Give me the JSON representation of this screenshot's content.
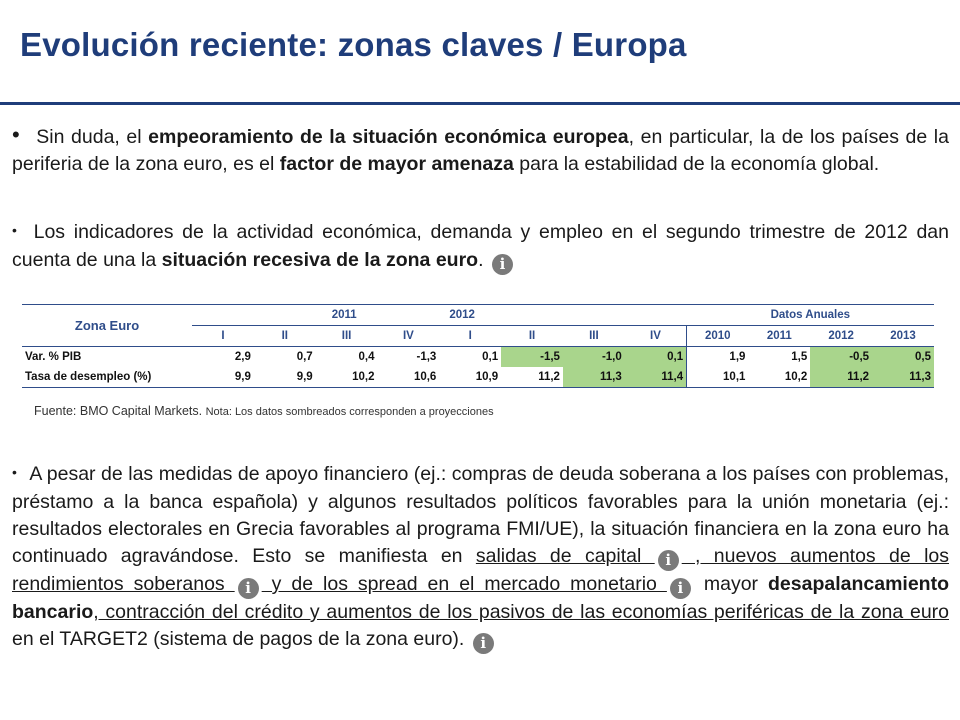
{
  "title": "Evolución reciente:  zonas claves / Europa",
  "para1": {
    "bullet": "•",
    "t1": " Sin duda, el ",
    "b1": "empeoramiento de la situación económica europea",
    "t2": ", en particular, la de los países de la periferia de la zona euro, es el ",
    "b2": "factor de mayor amenaza",
    "t3": " para la estabilidad de la economía global."
  },
  "para2": {
    "bullet": "•",
    "t1": " Los indicadores de la actividad económica, demanda y empleo en el segundo trimestre de 2012 dan cuenta de una la ",
    "b1": "situación recesiva de la zona euro",
    "t2": ". "
  },
  "info_icon_glyph": "i",
  "table": {
    "corner": "Zona Euro",
    "groups": [
      "2011",
      "2012",
      "Datos Anuales"
    ],
    "subheaders": [
      "I",
      "II",
      "III",
      "IV",
      "I",
      "II",
      "III",
      "IV",
      "2010",
      "2011",
      "2012",
      "2013"
    ],
    "rows": [
      {
        "label": "Var. % PIB",
        "values": [
          "2,9",
          "0,7",
          "0,4",
          "-1,3",
          "0,1",
          "-1,5",
          "-1,0",
          "0,1",
          "1,9",
          "1,5",
          "-0,5",
          "0,5"
        ],
        "shaded": [
          false,
          false,
          false,
          false,
          false,
          true,
          true,
          true,
          false,
          false,
          true,
          true
        ]
      },
      {
        "label": "Tasa de desempleo (%)",
        "values": [
          "9,9",
          "9,9",
          "10,2",
          "10,6",
          "10,9",
          "11,2",
          "11,3",
          "11,4",
          "10,1",
          "10,2",
          "11,2",
          "11,3"
        ],
        "shaded": [
          false,
          false,
          false,
          false,
          false,
          false,
          true,
          true,
          false,
          false,
          true,
          true
        ]
      }
    ],
    "shade_color": "#a9d58c"
  },
  "fuente": {
    "source": "Fuente: BMO Capital Markets. ",
    "nota": "Nota: Los datos sombreados corresponden a proyecciones"
  },
  "para3": {
    "bullet": "•",
    "t1": " A pesar de las medidas de apoyo financiero (ej.: compras de deuda soberana a los países con problemas, préstamo a la banca española) y algunos resultados políticos favorables para la unión monetaria  (ej.: resultados electorales en Grecia favorables al programa FMI/UE), la situación financiera en la zona euro ha continuado agravándose. Esto se manifiesta en ",
    "u1": "salidas de capital ",
    "u2": " , nuevos aumentos de los rendimientos soberanos ",
    "u3": "  y de los spread en el mercado monetario ",
    "t2": "   mayor ",
    "b1": "desapalancamiento bancario",
    "u4": ", contracción del crédito y aumentos de los pasivos de las economías periféricas de la zona euro ",
    "t3": "en el TARGET2 (sistema de pagos de la zona euro). "
  },
  "colors": {
    "title": "#1f3d7a",
    "rule": "#1f3d7a",
    "table_header": "#2f4d8a",
    "icon": "#7a7a7a"
  }
}
